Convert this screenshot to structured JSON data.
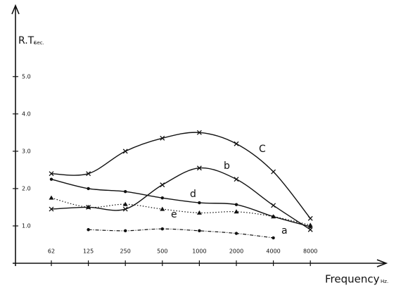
{
  "chart_data": {
    "type": "line",
    "ylabel": "R.T.",
    "ylabel_unit": "Sec.",
    "xlabel": "Frequency",
    "xlabel_unit": "Hz.",
    "categories": [
      "62",
      "125",
      "250",
      "500",
      "1000",
      "2000",
      "4000",
      "8000"
    ],
    "ylim": [
      0,
      6.9
    ],
    "yticks": [
      {
        "value": 1,
        "label": "1.0"
      },
      {
        "value": 2,
        "label": "2.0"
      },
      {
        "value": 3,
        "label": "3.0"
      },
      {
        "value": 4,
        "label": "4.0"
      },
      {
        "value": 5,
        "label": "5.0"
      }
    ],
    "grid": false,
    "series": [
      {
        "name": "C",
        "color": "#111111",
        "marker": "x",
        "dash": "solid",
        "values": [
          2.4,
          2.4,
          3.0,
          3.35,
          3.5,
          3.2,
          2.45,
          1.2
        ]
      },
      {
        "name": "b",
        "color": "#111111",
        "marker": "x",
        "dash": "solid",
        "values": [
          1.45,
          1.5,
          1.45,
          2.1,
          2.55,
          2.25,
          1.55,
          0.9
        ]
      },
      {
        "name": "d",
        "color": "#111111",
        "marker": "dot",
        "dash": "solid",
        "values": [
          2.25,
          2.0,
          1.92,
          1.75,
          1.62,
          1.57,
          1.25,
          0.98
        ]
      },
      {
        "name": "e",
        "color": "#111111",
        "marker": "triangle",
        "dash": "dotted",
        "values": [
          1.75,
          1.5,
          1.58,
          1.45,
          1.35,
          1.38,
          1.25,
          1.02
        ]
      },
      {
        "name": "a",
        "color": "#111111",
        "marker": "dot",
        "dash": "dashdot",
        "values": [
          null,
          0.9,
          0.87,
          0.92,
          0.87,
          0.8,
          0.68,
          null
        ]
      }
    ]
  }
}
